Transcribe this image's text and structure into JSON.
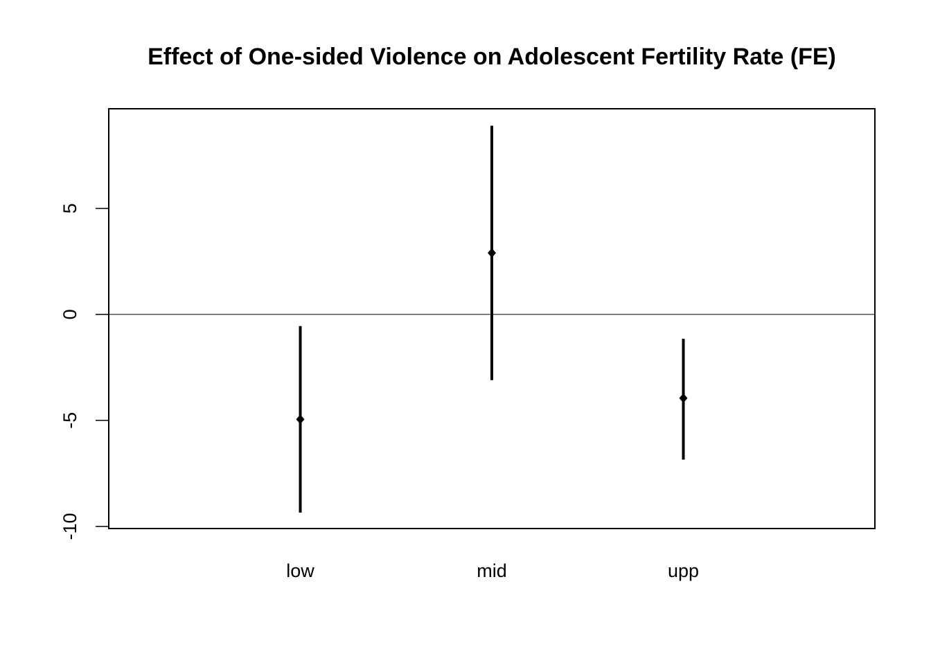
{
  "chart_data": {
    "type": "scatter",
    "title": "Effect of One-sided Violence on Adolescent Fertility Rate (FE)",
    "xlabel": "",
    "ylabel": "",
    "categories": [
      "low",
      "mid",
      "upp"
    ],
    "estimates": [
      -4.95,
      2.9,
      -3.95
    ],
    "lower": [
      -9.35,
      -3.1,
      -6.85
    ],
    "upper": [
      -0.55,
      8.9,
      -1.15
    ],
    "ylim": [
      -10.1,
      9.7
    ],
    "yticks": [
      -10,
      -5,
      0,
      5
    ],
    "ytick_labels": [
      "-10",
      "-5",
      "0",
      "5"
    ],
    "reference_line": 0,
    "grid": false,
    "legend": "none",
    "colors": {
      "line": "#000000",
      "background": "#ffffff"
    }
  }
}
